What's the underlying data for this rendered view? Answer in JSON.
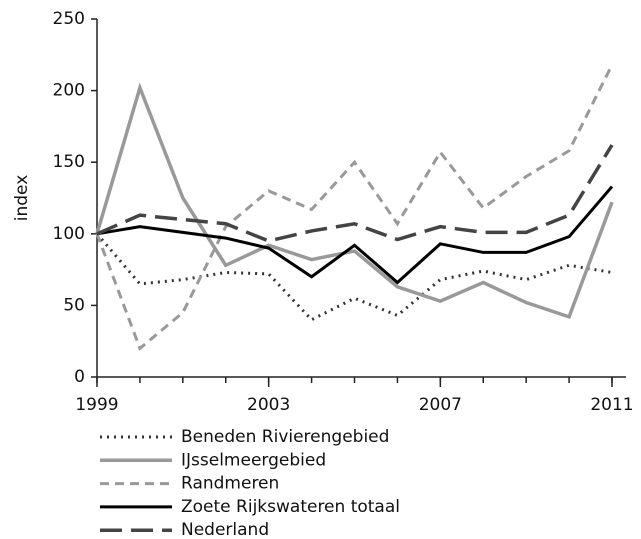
{
  "chart_data": {
    "type": "line",
    "y_label": "index",
    "x": [
      1999,
      2000,
      2001,
      2002,
      2003,
      2004,
      2005,
      2006,
      2007,
      2008,
      2009,
      2010,
      2011
    ],
    "xlim": [
      1999,
      2011
    ],
    "xticks": [
      1999,
      2003,
      2007,
      2011
    ],
    "ylim": [
      0,
      250
    ],
    "yticks": [
      0,
      50,
      100,
      150,
      200,
      250
    ],
    "series": [
      {
        "name": "Beneden Rivierengebied",
        "color": "#333333",
        "dash": "2 5",
        "width": 3,
        "values": [
          100,
          65,
          68,
          73,
          72,
          40,
          55,
          43,
          68,
          74,
          68,
          78,
          73
        ]
      },
      {
        "name": "IJsselmeergebied",
        "color": "#999999",
        "dash": "none",
        "width": 3.5,
        "values": [
          100,
          202,
          125,
          78,
          92,
          82,
          88,
          63,
          53,
          66,
          52,
          42,
          122
        ]
      },
      {
        "name": "Randmeren",
        "color": "#999999",
        "dash": "9 6",
        "width": 3,
        "values": [
          100,
          20,
          45,
          105,
          130,
          117,
          150,
          107,
          157,
          118,
          140,
          158,
          218
        ]
      },
      {
        "name": "Zoete Rijkswateren totaal",
        "color": "#000000",
        "dash": "none",
        "width": 3,
        "values": [
          100,
          105,
          101,
          97,
          90,
          70,
          92,
          66,
          93,
          87,
          87,
          98,
          133
        ]
      },
      {
        "name": "Nederland",
        "color": "#444444",
        "dash": "22 9",
        "width": 3.5,
        "values": [
          100,
          113,
          110,
          107,
          95,
          102,
          107,
          96,
          105,
          101,
          101,
          113,
          162
        ]
      }
    ]
  }
}
